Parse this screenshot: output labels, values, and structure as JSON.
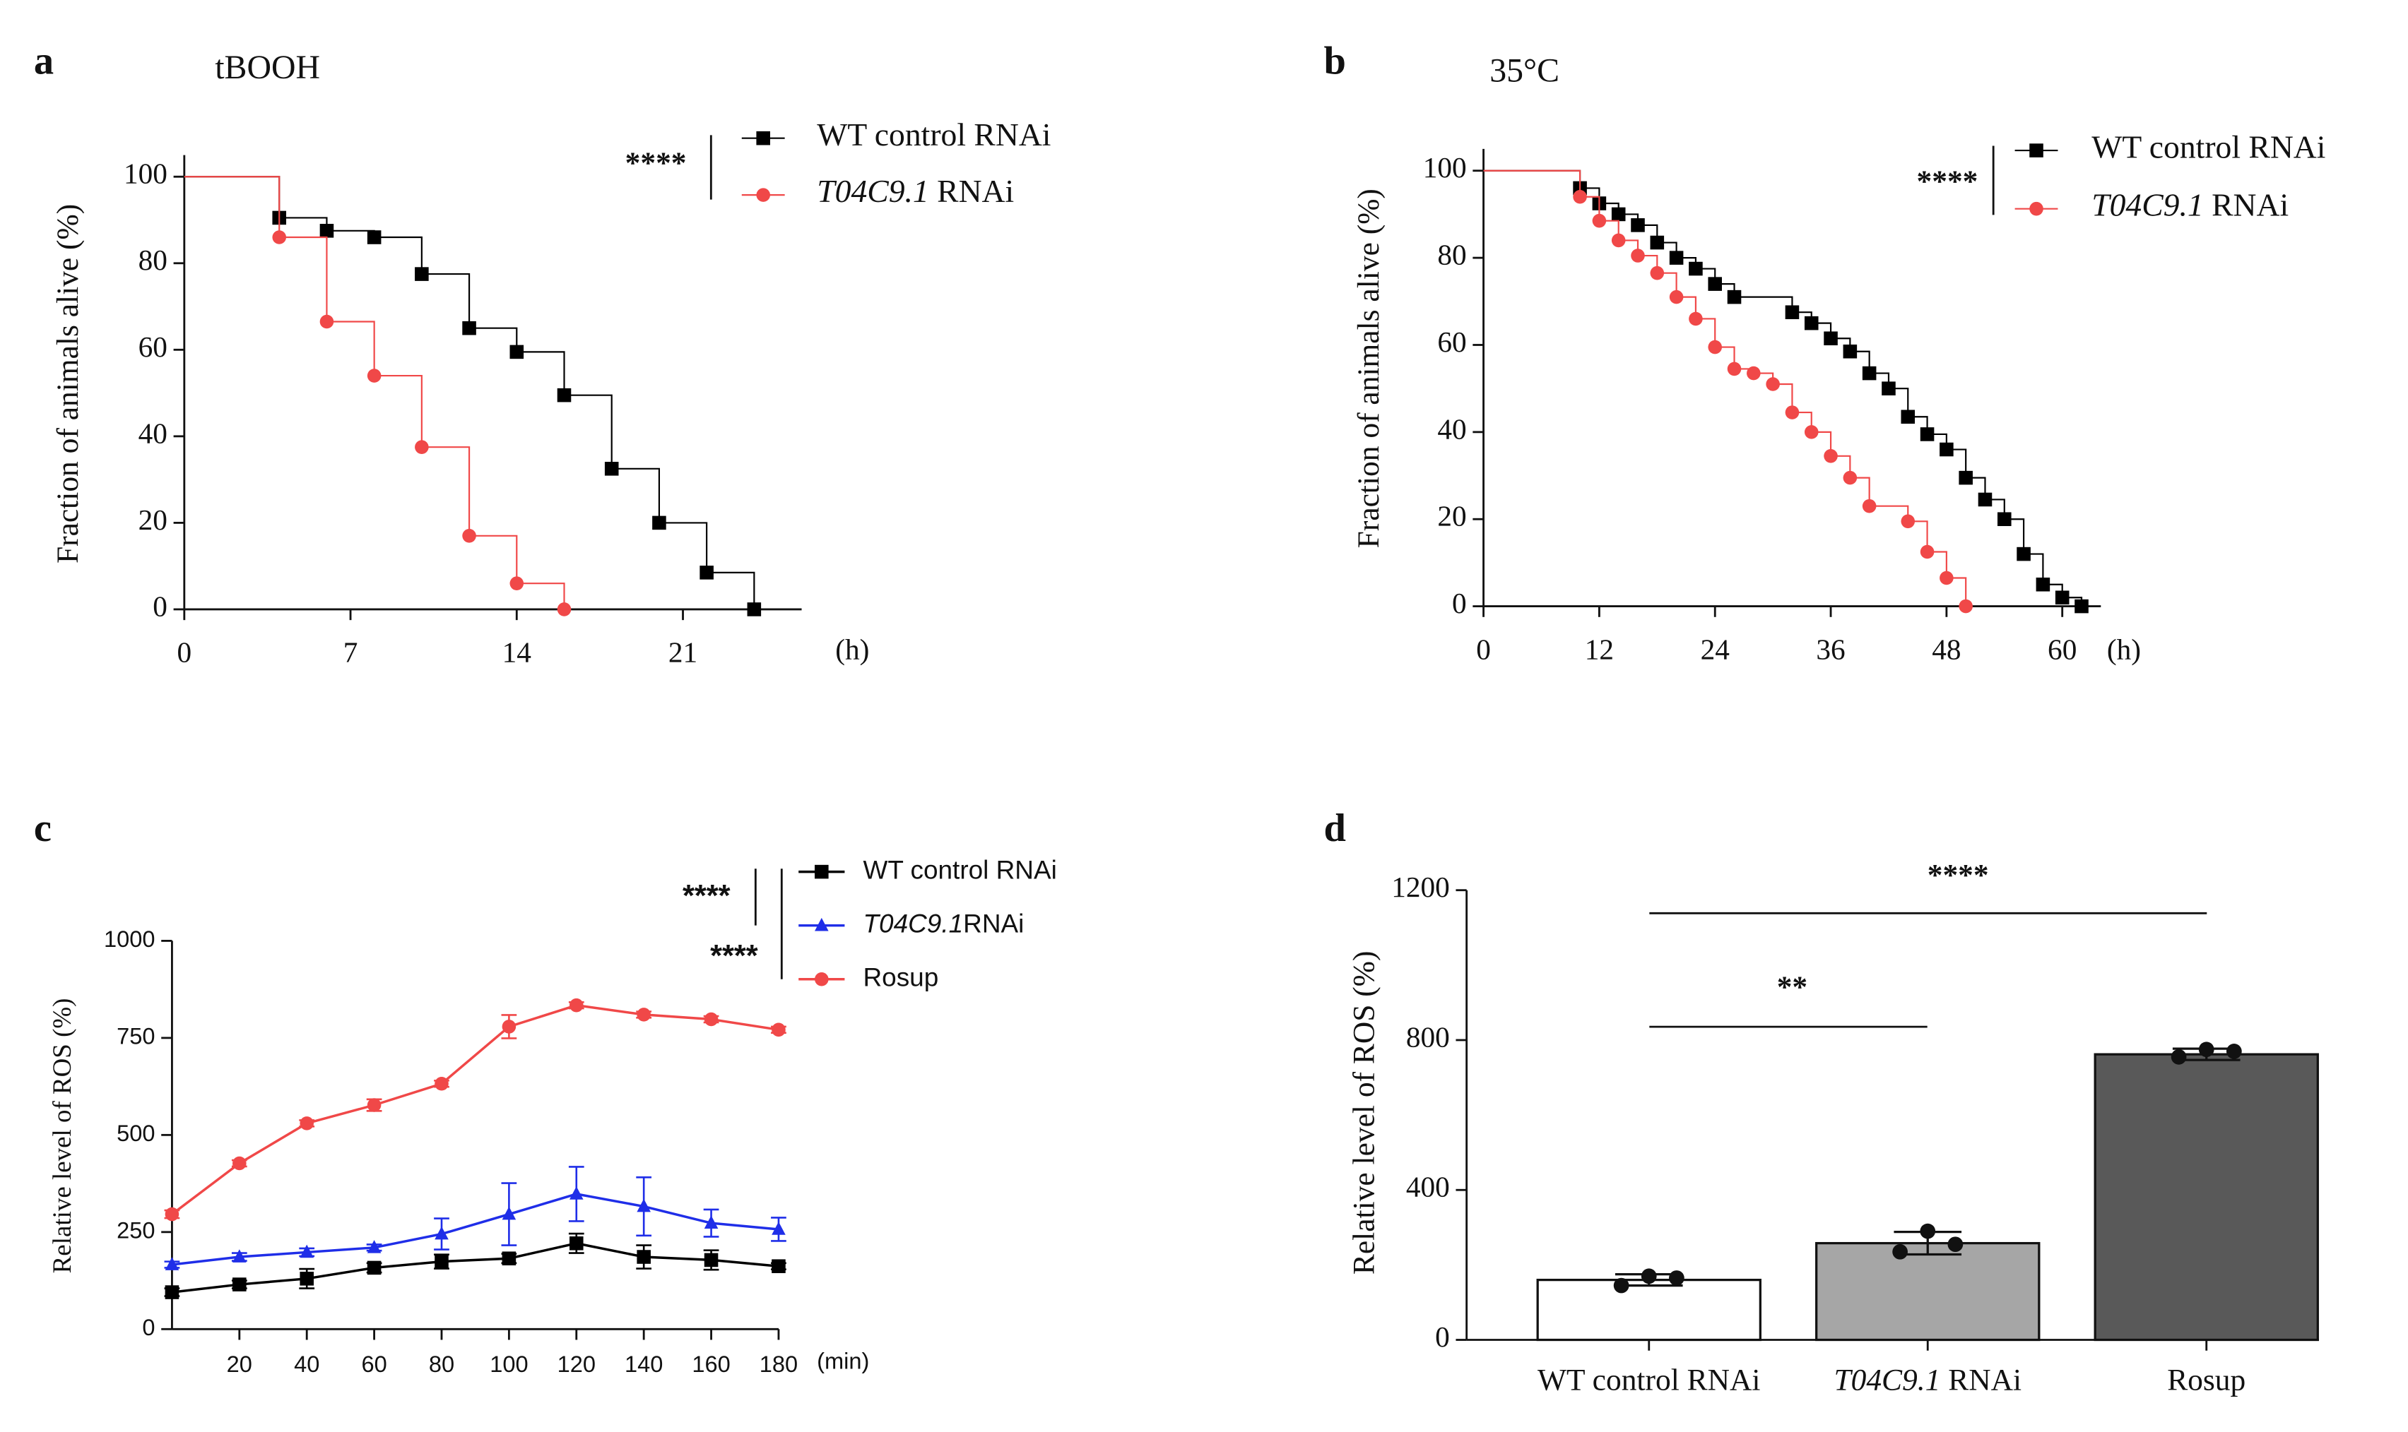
{
  "chart_data": [
    {
      "type": "line",
      "step": true,
      "panel": "a",
      "title": "tBOOH",
      "y_label": "Fraction of animals alive (%)",
      "x_label": "(h)",
      "xlim": [
        0,
        26
      ],
      "xticks": [
        0,
        7,
        14,
        21
      ],
      "ylim": [
        0,
        105
      ],
      "yticks": [
        0,
        20,
        40,
        60,
        80,
        100
      ],
      "annotations": [
        "****"
      ],
      "series": [
        {
          "name": "WT control RNAi",
          "color": "#000000",
          "marker": "square",
          "x": [
            0,
            4,
            6,
            8,
            10,
            12,
            14,
            16,
            18,
            20,
            22,
            24
          ],
          "values": [
            100,
            90.5,
            87.5,
            86,
            77.5,
            65,
            59.5,
            49.5,
            32.5,
            20,
            8.5,
            0
          ]
        },
        {
          "name": "T04C9.1 RNAi",
          "color": "#f04848",
          "marker": "circle",
          "x": [
            0,
            4,
            6,
            8,
            10,
            12,
            14,
            16
          ],
          "values": [
            100,
            86,
            66.5,
            54,
            37.5,
            17,
            6,
            0
          ]
        }
      ]
    },
    {
      "type": "line",
      "step": true,
      "panel": "b",
      "title": "35°C",
      "y_label": "Fraction of animals alive (%)",
      "x_label": "(h)",
      "xlim": [
        0,
        64
      ],
      "xticks": [
        0,
        12,
        24,
        36,
        48,
        60
      ],
      "ylim": [
        0,
        105
      ],
      "yticks": [
        0,
        20,
        40,
        60,
        80,
        100
      ],
      "annotations": [
        "****"
      ],
      "series": [
        {
          "name": "WT control RNAi",
          "color": "#000000",
          "marker": "square",
          "x": [
            0,
            10,
            12,
            14,
            16,
            18,
            20,
            22,
            24,
            26,
            32,
            34,
            36,
            38,
            40,
            42,
            44,
            46,
            48,
            50,
            52,
            54,
            56,
            58,
            60,
            62
          ],
          "values": [
            100,
            96,
            92.5,
            90,
            87.5,
            83.5,
            80,
            77.5,
            74,
            71,
            67.5,
            65,
            61.5,
            58.5,
            53.5,
            50,
            43.5,
            39.5,
            36,
            29.5,
            24.5,
            20,
            12,
            5,
            2,
            0
          ]
        },
        {
          "name": "T04C9.1 RNAi",
          "color": "#f04848",
          "marker": "circle",
          "x": [
            0,
            10,
            12,
            14,
            16,
            18,
            20,
            22,
            24,
            26,
            28,
            30,
            32,
            34,
            36,
            38,
            40,
            44,
            46,
            48,
            50
          ],
          "values": [
            100,
            94,
            88.5,
            84,
            80.5,
            76.5,
            71,
            66,
            59.5,
            54.5,
            53.5,
            51,
            44.5,
            40,
            34.5,
            29.5,
            23,
            19.5,
            12.5,
            6.5,
            0
          ]
        }
      ]
    },
    {
      "type": "line",
      "step": false,
      "panel": "c",
      "y_label": "Relative level of ROS (%)",
      "x_label": "(min)",
      "xlim": [
        0,
        180
      ],
      "xticks": [
        20,
        40,
        60,
        80,
        100,
        120,
        140,
        160,
        180
      ],
      "ylim": [
        0,
        1000
      ],
      "yticks": [
        0,
        250,
        500,
        750,
        1000
      ],
      "annotations": [
        "****",
        "****"
      ],
      "series": [
        {
          "name": "WT control RNAi",
          "color": "#000000",
          "marker": "square",
          "x": [
            0,
            20,
            40,
            60,
            80,
            100,
            120,
            140,
            160,
            180
          ],
          "values": [
            95,
            115,
            130,
            158,
            174,
            182,
            221,
            186,
            178,
            162
          ],
          "errors": [
            10,
            10,
            25,
            12,
            18,
            12,
            25,
            30,
            25,
            8
          ]
        },
        {
          "name": "T04C9.1RNAi",
          "color": "#1f2ee8",
          "marker": "triangle",
          "x": [
            0,
            20,
            40,
            60,
            80,
            100,
            120,
            140,
            160,
            180
          ],
          "values": [
            166,
            186,
            198,
            210,
            245,
            296,
            348,
            316,
            273,
            257
          ],
          "errors": [
            8,
            10,
            10,
            8,
            40,
            80,
            70,
            75,
            35,
            30
          ]
        },
        {
          "name": "Rosup",
          "color": "#f04848",
          "marker": "circle",
          "x": [
            0,
            20,
            40,
            60,
            80,
            100,
            120,
            140,
            160,
            180
          ],
          "values": [
            296,
            427,
            530,
            577,
            632,
            779,
            834,
            810,
            798,
            771
          ],
          "errors": [
            10,
            8,
            8,
            15,
            8,
            30,
            8,
            8,
            8,
            8
          ]
        }
      ]
    },
    {
      "type": "bar",
      "panel": "d",
      "y_label": "Relative level of ROS (%)",
      "categories": [
        "WT control RNAi",
        "T04C9.1 RNAi",
        "Rosup"
      ],
      "values": [
        160,
        258,
        762
      ],
      "errors": [
        15,
        30,
        15
      ],
      "points": [
        [
          145,
          170,
          165
        ],
        [
          235,
          290,
          255
        ],
        [
          755,
          775,
          770
        ]
      ],
      "colors": [
        "#ffffff",
        "#a6a6a6",
        "#595959"
      ],
      "ylim": [
        0,
        1200
      ],
      "yticks": [
        0,
        400,
        800,
        1200
      ],
      "annotations": [
        "**",
        "****"
      ]
    }
  ]
}
